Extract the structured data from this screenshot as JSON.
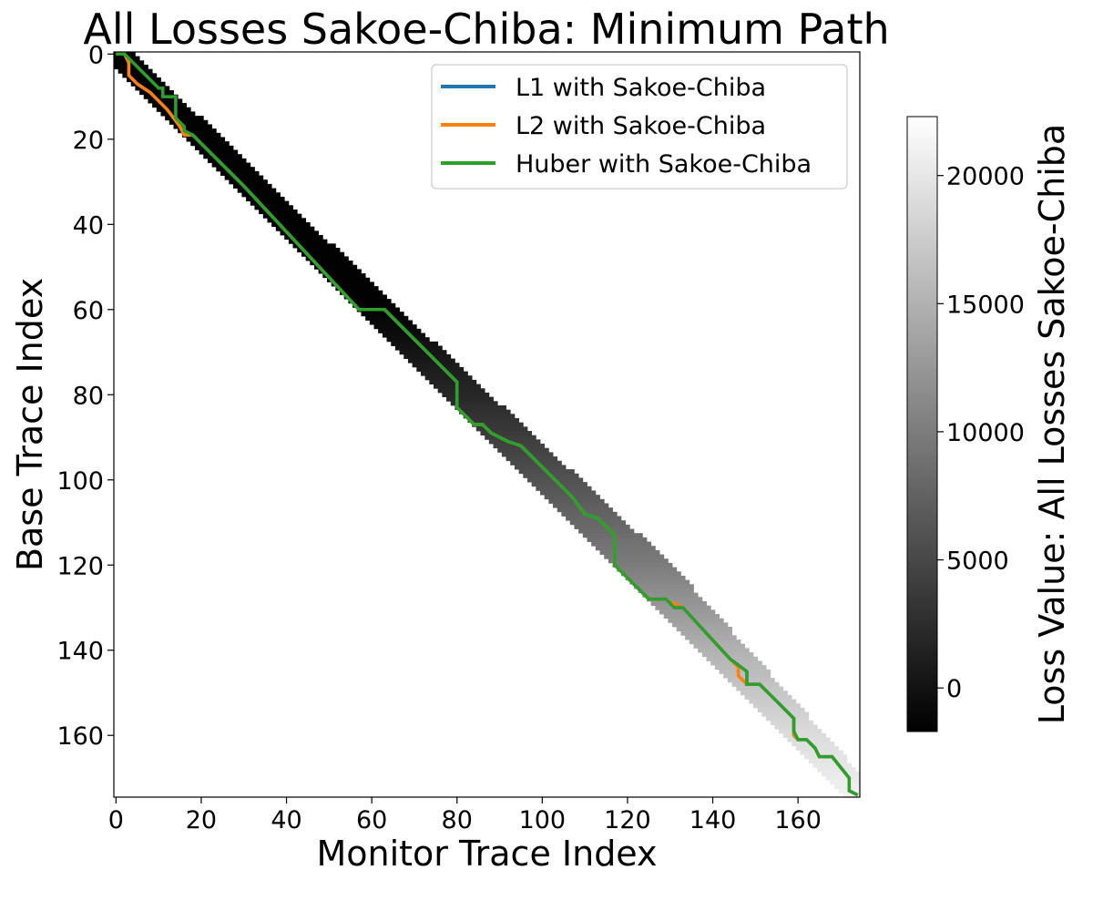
{
  "chart_data": {
    "type": "heatmap",
    "title": "All Losses Sakoe-Chiba: Minimum Path",
    "xlabel": "Monitor Trace Index",
    "ylabel": "Base Trace Index",
    "xlim": [
      -0.5,
      174.5
    ],
    "ylim": [
      174.5,
      -0.5
    ],
    "x_ticks": [
      "0",
      "20",
      "40",
      "60",
      "80",
      "100",
      "120",
      "140",
      "160"
    ],
    "y_ticks": [
      "0",
      "20",
      "40",
      "60",
      "80",
      "100",
      "120",
      "140",
      "160"
    ],
    "band": {
      "description_of_values": "Loss accumulated along a Sakoe-Chiba band; cells outside the band are blank.",
      "lower_offset_rows": 3,
      "upper_width_by_row": [
        [
          0,
          4
        ],
        [
          60,
          6
        ],
        [
          120,
          10
        ],
        [
          170,
          5
        ]
      ],
      "value_profile": [
        [
          0,
          -1500
        ],
        [
          60,
          -1500
        ],
        [
          80,
          2000
        ],
        [
          100,
          6000
        ],
        [
          120,
          10000
        ],
        [
          140,
          15000
        ],
        [
          160,
          19000
        ],
        [
          174,
          21000
        ]
      ]
    },
    "colorbar": {
      "label": "Loss Value: All Losses Sakoe-Chiba",
      "min": -1700,
      "max": 22300,
      "ticks": [
        "0",
        "5000",
        "10000",
        "15000",
        "20000"
      ],
      "colormap": "gray"
    },
    "legend_position": "upper right",
    "series": [
      {
        "name": "L1 with Sakoe-Chiba",
        "color": "#1f77b4",
        "points": [
          [
            0,
            0
          ],
          [
            2,
            0
          ],
          [
            3,
            2
          ],
          [
            3,
            5
          ],
          [
            5,
            7
          ],
          [
            8,
            9
          ],
          [
            12,
            13
          ],
          [
            15,
            17
          ],
          [
            16,
            19
          ],
          [
            18,
            19
          ],
          [
            20,
            21
          ],
          [
            28,
            29
          ],
          [
            30,
            31
          ],
          [
            57,
            60
          ],
          [
            63,
            60
          ],
          [
            80,
            77
          ],
          [
            80,
            83
          ],
          [
            84,
            87
          ],
          [
            86,
            87
          ],
          [
            88,
            89
          ],
          [
            92,
            91
          ],
          [
            95,
            92
          ],
          [
            101,
            98
          ],
          [
            107,
            104
          ],
          [
            110,
            108
          ],
          [
            113,
            109
          ],
          [
            117,
            113
          ],
          [
            117,
            120
          ],
          [
            125,
            128
          ],
          [
            129,
            128
          ],
          [
            131,
            130
          ],
          [
            133,
            130
          ],
          [
            144,
            142
          ],
          [
            148,
            145
          ],
          [
            148,
            148
          ],
          [
            151,
            148
          ],
          [
            159,
            156
          ],
          [
            159,
            160
          ],
          [
            160,
            161
          ],
          [
            162,
            161
          ],
          [
            164,
            163
          ],
          [
            165,
            165
          ],
          [
            168,
            165
          ],
          [
            172,
            170
          ],
          [
            172,
            173
          ],
          [
            174,
            174
          ]
        ]
      },
      {
        "name": "L2 with Sakoe-Chiba",
        "color": "#ff7f0e",
        "points": [
          [
            0,
            0
          ],
          [
            2,
            0
          ],
          [
            3,
            2
          ],
          [
            3,
            5
          ],
          [
            5,
            7
          ],
          [
            8,
            9
          ],
          [
            12,
            13
          ],
          [
            15,
            17
          ],
          [
            16,
            19
          ],
          [
            18,
            19
          ],
          [
            20,
            21
          ],
          [
            28,
            29
          ],
          [
            30,
            31
          ],
          [
            57,
            60
          ],
          [
            63,
            60
          ],
          [
            80,
            77
          ],
          [
            80,
            83
          ],
          [
            84,
            87
          ],
          [
            86,
            87
          ],
          [
            88,
            89
          ],
          [
            92,
            91
          ],
          [
            95,
            92
          ],
          [
            101,
            98
          ],
          [
            107,
            104
          ],
          [
            110,
            108
          ],
          [
            113,
            109
          ],
          [
            117,
            113
          ],
          [
            117,
            120
          ],
          [
            125,
            128
          ],
          [
            129,
            128
          ],
          [
            130,
            129
          ],
          [
            131,
            129
          ],
          [
            133,
            130
          ],
          [
            144,
            142
          ],
          [
            146,
            144
          ],
          [
            146,
            146
          ],
          [
            148,
            148
          ],
          [
            151,
            148
          ],
          [
            159,
            156
          ],
          [
            159,
            160
          ],
          [
            160,
            161
          ],
          [
            162,
            161
          ],
          [
            164,
            163
          ],
          [
            165,
            165
          ],
          [
            168,
            165
          ],
          [
            172,
            170
          ],
          [
            172,
            173
          ],
          [
            174,
            174
          ]
        ]
      },
      {
        "name": "Huber with Sakoe-Chiba",
        "color": "#2ca02c",
        "points": [
          [
            0,
            0
          ],
          [
            2,
            0
          ],
          [
            4,
            2
          ],
          [
            6,
            4
          ],
          [
            8,
            6
          ],
          [
            10,
            8
          ],
          [
            11,
            8
          ],
          [
            11,
            10
          ],
          [
            14,
            10
          ],
          [
            14,
            15
          ],
          [
            16,
            17
          ],
          [
            16,
            18
          ],
          [
            18,
            19
          ],
          [
            20,
            21
          ],
          [
            28,
            29
          ],
          [
            30,
            31
          ],
          [
            57,
            60
          ],
          [
            63,
            60
          ],
          [
            80,
            77
          ],
          [
            80,
            83
          ],
          [
            84,
            87
          ],
          [
            86,
            87
          ],
          [
            88,
            89
          ],
          [
            92,
            91
          ],
          [
            95,
            92
          ],
          [
            101,
            98
          ],
          [
            107,
            104
          ],
          [
            110,
            108
          ],
          [
            113,
            109
          ],
          [
            117,
            113
          ],
          [
            117,
            120
          ],
          [
            125,
            128
          ],
          [
            129,
            128
          ],
          [
            131,
            130
          ],
          [
            133,
            130
          ],
          [
            144,
            142
          ],
          [
            148,
            145
          ],
          [
            148,
            148
          ],
          [
            151,
            148
          ],
          [
            159,
            156
          ],
          [
            159,
            159
          ],
          [
            160,
            161
          ],
          [
            162,
            161
          ],
          [
            164,
            163
          ],
          [
            165,
            165
          ],
          [
            168,
            165
          ],
          [
            172,
            170
          ],
          [
            172,
            173
          ],
          [
            174,
            174
          ]
        ]
      }
    ]
  }
}
